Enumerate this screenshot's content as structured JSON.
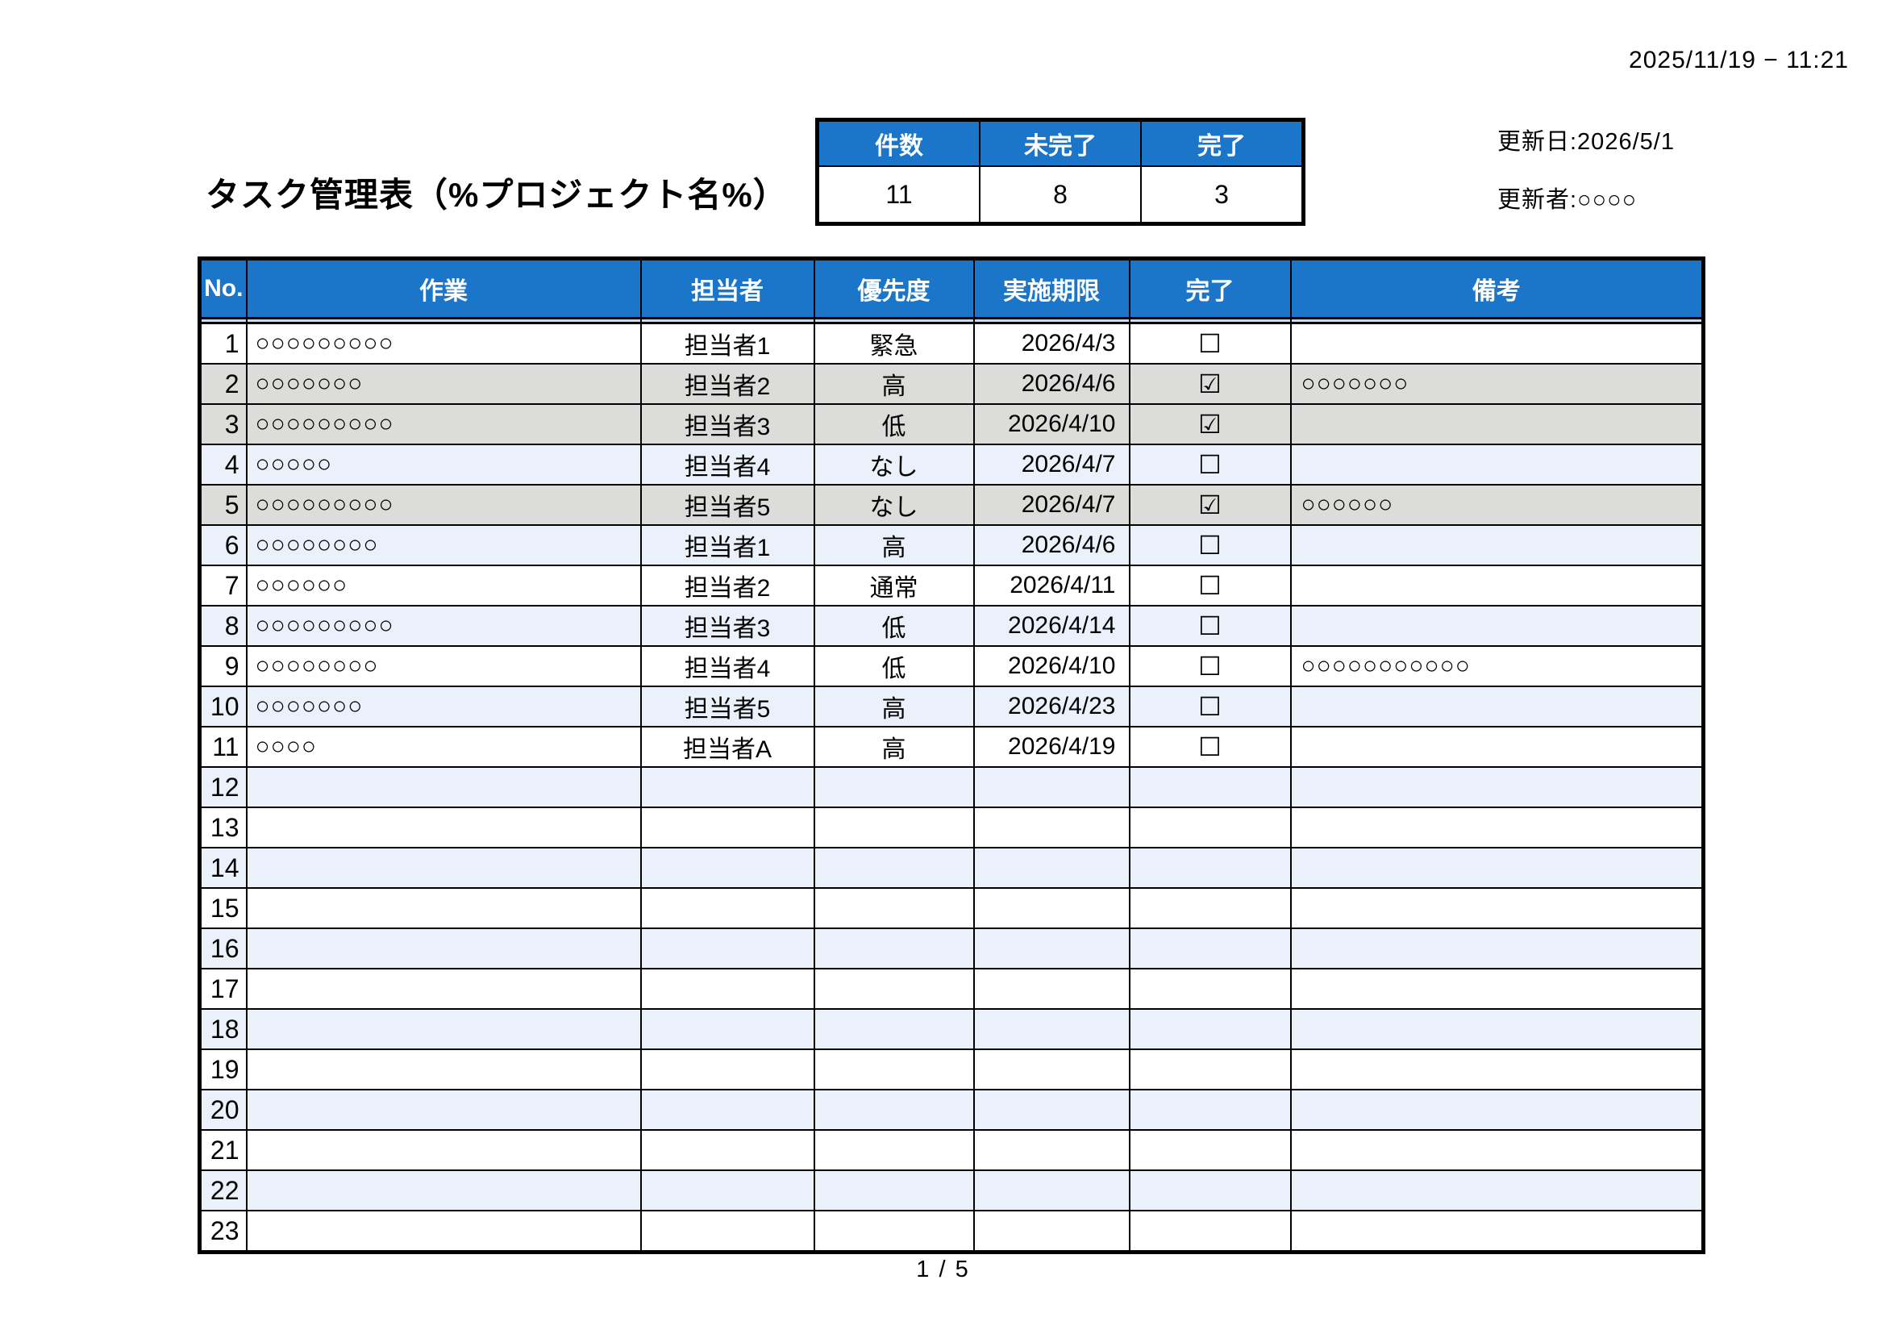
{
  "page": {
    "print_timestamp": "2025/11/19 − 11:21",
    "title": "タスク管理表（%プロジェクト名%）",
    "footer_page": "1 / 5"
  },
  "update": {
    "date_line": "更新日:2026/5/1",
    "by_line": "更新者:○○○○"
  },
  "summary": {
    "headers": [
      "件数",
      "未完了",
      "完了"
    ],
    "values": [
      "11",
      "8",
      "3"
    ]
  },
  "task_table": {
    "headers": [
      "No.",
      "作業",
      "担当者",
      "優先度",
      "実施期限",
      "完了",
      "備考"
    ],
    "checkbox_icons": {
      "checked": "☑",
      "unchecked": "☐"
    },
    "colors": {
      "header_blue": "#1b75c8",
      "row_even_blue": "#eaf1fa",
      "row_done_gray": "#dcdcda"
    },
    "rows": [
      {
        "no": 1,
        "task": "○○○○○○○○○",
        "assignee": "担当者1",
        "priority": "緊急",
        "due": "2026/4/3",
        "done": false,
        "remarks": ""
      },
      {
        "no": 2,
        "task": "○○○○○○○",
        "assignee": "担当者2",
        "priority": "高",
        "due": "2026/4/6",
        "done": true,
        "remarks": "○○○○○○○"
      },
      {
        "no": 3,
        "task": "○○○○○○○○○",
        "assignee": "担当者3",
        "priority": "低",
        "due": "2026/4/10",
        "done": true,
        "remarks": ""
      },
      {
        "no": 4,
        "task": "○○○○○",
        "assignee": "担当者4",
        "priority": "なし",
        "due": "2026/4/7",
        "done": false,
        "remarks": ""
      },
      {
        "no": 5,
        "task": "○○○○○○○○○",
        "assignee": "担当者5",
        "priority": "なし",
        "due": "2026/4/7",
        "done": true,
        "remarks": "○○○○○○"
      },
      {
        "no": 6,
        "task": "○○○○○○○○",
        "assignee": "担当者1",
        "priority": "高",
        "due": "2026/4/6",
        "done": false,
        "remarks": ""
      },
      {
        "no": 7,
        "task": "○○○○○○",
        "assignee": "担当者2",
        "priority": "通常",
        "due": "2026/4/11",
        "done": false,
        "remarks": ""
      },
      {
        "no": 8,
        "task": "○○○○○○○○○",
        "assignee": "担当者3",
        "priority": "低",
        "due": "2026/4/14",
        "done": false,
        "remarks": ""
      },
      {
        "no": 9,
        "task": "○○○○○○○○",
        "assignee": "担当者4",
        "priority": "低",
        "due": "2026/4/10",
        "done": false,
        "remarks": "○○○○○○○○○○○"
      },
      {
        "no": 10,
        "task": "○○○○○○○",
        "assignee": "担当者5",
        "priority": "高",
        "due": "2026/4/23",
        "done": false,
        "remarks": ""
      },
      {
        "no": 11,
        "task": "○○○○",
        "assignee": "担当者A",
        "priority": "高",
        "due": "2026/4/19",
        "done": false,
        "remarks": ""
      },
      {
        "no": 12,
        "task": "",
        "assignee": "",
        "priority": "",
        "due": "",
        "done": null,
        "remarks": ""
      },
      {
        "no": 13,
        "task": "",
        "assignee": "",
        "priority": "",
        "due": "",
        "done": null,
        "remarks": ""
      },
      {
        "no": 14,
        "task": "",
        "assignee": "",
        "priority": "",
        "due": "",
        "done": null,
        "remarks": ""
      },
      {
        "no": 15,
        "task": "",
        "assignee": "",
        "priority": "",
        "due": "",
        "done": null,
        "remarks": ""
      },
      {
        "no": 16,
        "task": "",
        "assignee": "",
        "priority": "",
        "due": "",
        "done": null,
        "remarks": ""
      },
      {
        "no": 17,
        "task": "",
        "assignee": "",
        "priority": "",
        "due": "",
        "done": null,
        "remarks": ""
      },
      {
        "no": 18,
        "task": "",
        "assignee": "",
        "priority": "",
        "due": "",
        "done": null,
        "remarks": ""
      },
      {
        "no": 19,
        "task": "",
        "assignee": "",
        "priority": "",
        "due": "",
        "done": null,
        "remarks": ""
      },
      {
        "no": 20,
        "task": "",
        "assignee": "",
        "priority": "",
        "due": "",
        "done": null,
        "remarks": ""
      },
      {
        "no": 21,
        "task": "",
        "assignee": "",
        "priority": "",
        "due": "",
        "done": null,
        "remarks": ""
      },
      {
        "no": 22,
        "task": "",
        "assignee": "",
        "priority": "",
        "due": "",
        "done": null,
        "remarks": ""
      },
      {
        "no": 23,
        "task": "",
        "assignee": "",
        "priority": "",
        "due": "",
        "done": null,
        "remarks": ""
      }
    ]
  }
}
